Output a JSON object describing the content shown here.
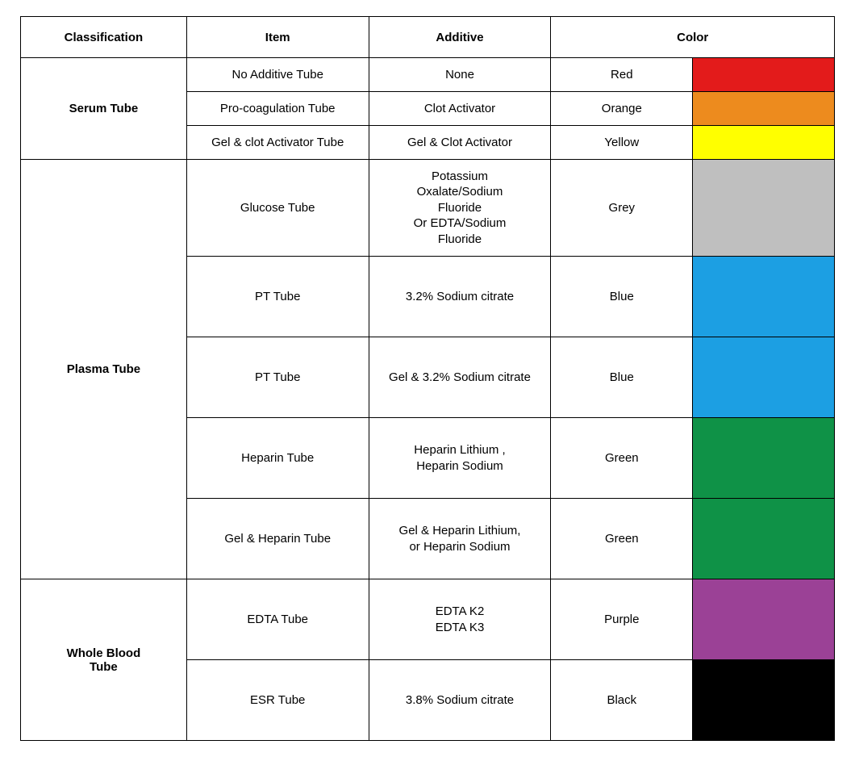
{
  "table": {
    "headers": {
      "classification": "Classification",
      "item": "Item",
      "additive": "Additive",
      "color": "Color"
    },
    "groups": [
      {
        "classification": "Serum Tube",
        "rows": [
          {
            "item": "No Additive Tube",
            "additive": "None",
            "colorName": "Red",
            "colorHex": "#e31b1b",
            "height": "short"
          },
          {
            "item": "Pro-coagulation Tube",
            "additive": "Clot  Activator",
            "colorName": "Orange",
            "colorHex": "#ed8b1e",
            "height": "short"
          },
          {
            "item": "Gel & clot Activator Tube",
            "additive": "Gel & Clot  Activator",
            "colorName": "Yellow",
            "colorHex": "#ffff00",
            "height": "short"
          }
        ]
      },
      {
        "classification": "Plasma Tube",
        "rows": [
          {
            "item": "Glucose Tube",
            "additive": "Potassium\nOxalate/Sodium\nFluoride\nOr EDTA/Sodium\nFluoride",
            "colorName": "Grey",
            "colorHex": "#bfbfbf",
            "height": "xtall"
          },
          {
            "item": "PT Tube",
            "additive": "3.2% Sodium citrate",
            "colorName": "Blue",
            "colorHex": "#1c9fe3",
            "height": "tall"
          },
          {
            "item": "PT Tube",
            "additive": "Gel & 3.2% Sodium citrate",
            "colorName": "Blue",
            "colorHex": "#1c9fe3",
            "height": "tall"
          },
          {
            "item": "Heparin  Tube",
            "additive": "Heparin Lithium ,\nHeparin Sodium",
            "colorName": "Green",
            "colorHex": "#0f9247",
            "height": "tall"
          },
          {
            "item": "Gel & Heparin  Tube",
            "additive": "Gel &  Heparin Lithium,\nor Heparin Sodium",
            "colorName": "Green",
            "colorHex": "#0f9247",
            "height": "tall"
          }
        ]
      },
      {
        "classification": "Whole Blood\nTube",
        "rows": [
          {
            "item": "EDTA Tube",
            "additive": "EDTA  K2\nEDTA  K3",
            "colorName": "Purple",
            "colorHex": "#9b4196",
            "height": "tall"
          },
          {
            "item": "ESR Tube",
            "additive": "3.8% Sodium citrate",
            "colorName": "Black",
            "colorHex": "#000000",
            "height": "tall"
          }
        ]
      }
    ],
    "border_color": "#000000",
    "background_color": "#ffffff",
    "header_fontsize": 15,
    "cell_fontsize": 15
  }
}
